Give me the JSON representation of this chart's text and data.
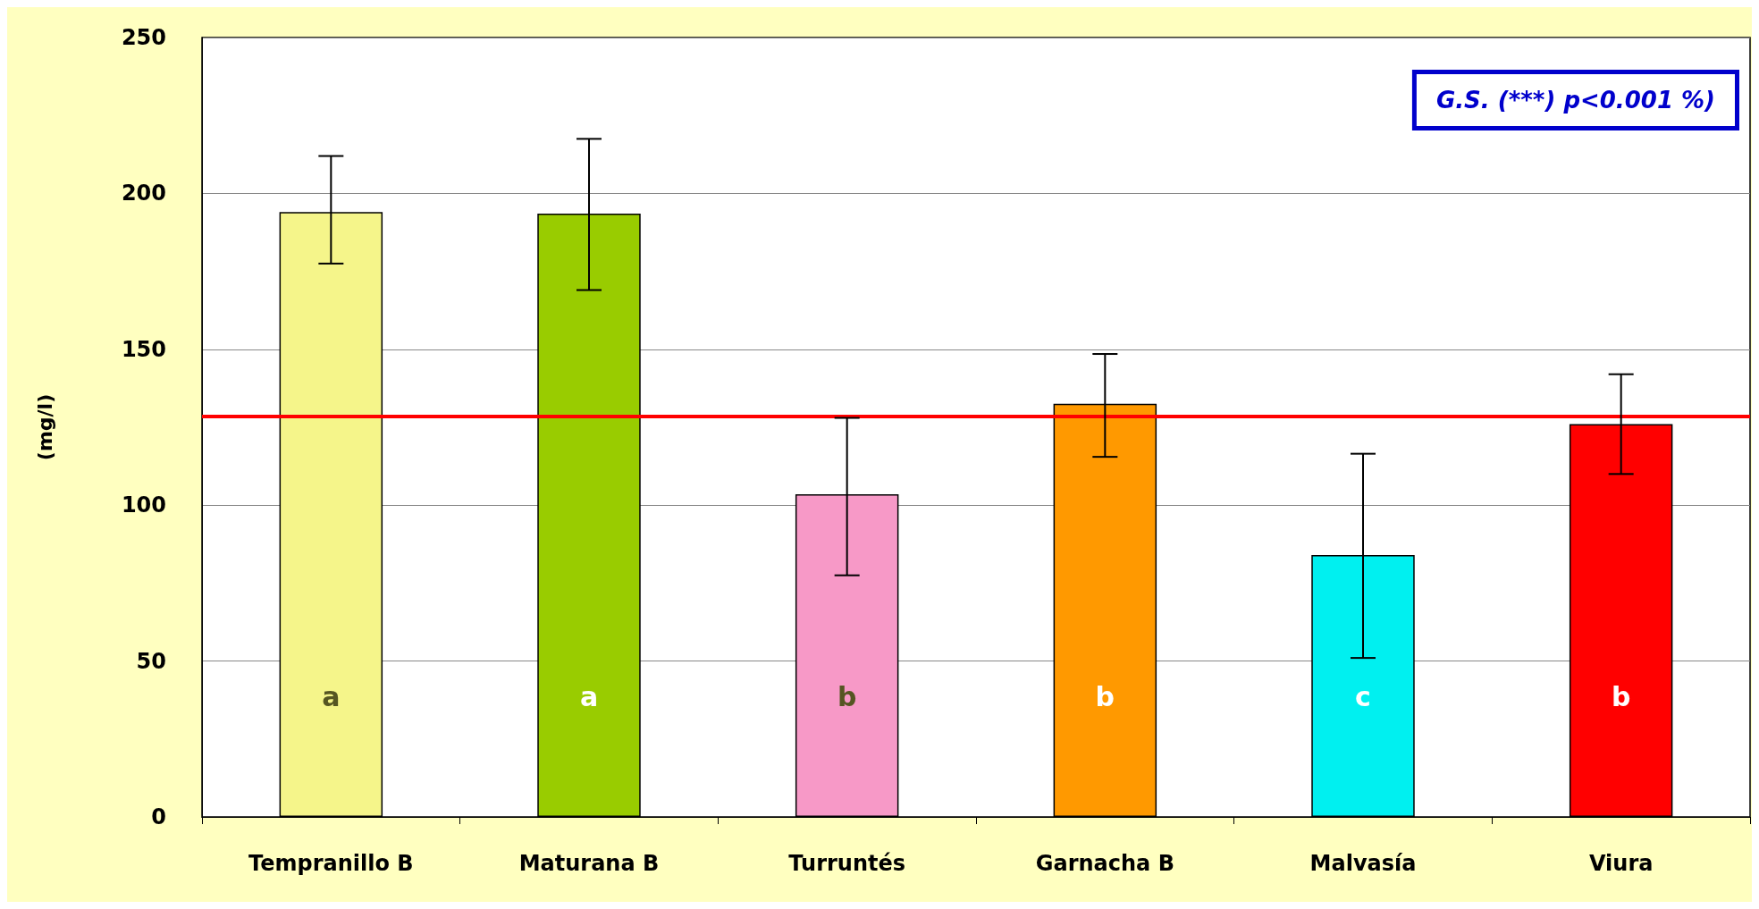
{
  "chart_data": {
    "type": "bar",
    "ylabel": "(mg/l)",
    "categories": [
      "Tempranillo B",
      "Maturana B",
      "Turruntés",
      "Garnacha B",
      "Malvasía",
      "Viura"
    ],
    "values": [
      194,
      193.5,
      103.5,
      132.5,
      84,
      126
    ],
    "colors": [
      "#f5f58a",
      "#99cc00",
      "#f799c7",
      "#ff9900",
      "#00f0f0",
      "#ff0000"
    ],
    "errors": [
      [
        177.5,
        212
      ],
      [
        169,
        217.5
      ],
      [
        77.5,
        128
      ],
      [
        115.5,
        148.5
      ],
      [
        51,
        116.5
      ],
      [
        110,
        142
      ]
    ],
    "ylim": [
      0,
      250
    ],
    "yticks": [
      0,
      50,
      100,
      150,
      200,
      250
    ],
    "grid": "y",
    "ref_lines": [
      {
        "axis": "y",
        "value": 128.5,
        "color": "#ff0000"
      }
    ],
    "annotations": [
      "G.S. (***) p<0.001 %)",
      "a",
      "a",
      "b",
      "b",
      "c",
      "b"
    ]
  }
}
